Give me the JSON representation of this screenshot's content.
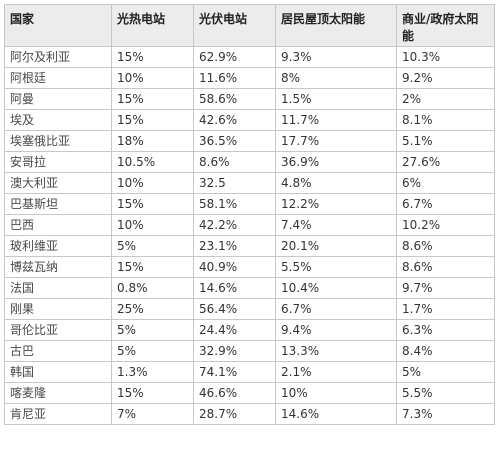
{
  "table": {
    "headers": [
      "国家",
      "光热电站",
      "光伏电站",
      "居民屋顶太阳能",
      "商业/政府太阳能"
    ],
    "rows": [
      [
        "阿尔及利亚",
        "15%",
        "62.9%",
        "9.3%",
        "10.3%"
      ],
      [
        "阿根廷",
        "10%",
        "11.6%",
        "8%",
        "9.2%"
      ],
      [
        "阿曼",
        "15%",
        "58.6%",
        "1.5%",
        "2%"
      ],
      [
        "埃及",
        "15%",
        "42.6%",
        "11.7%",
        "8.1%"
      ],
      [
        "埃塞俄比亚",
        "18%",
        "36.5%",
        "17.7%",
        "5.1%"
      ],
      [
        "安哥拉",
        "10.5%",
        "8.6%",
        "36.9%",
        "27.6%"
      ],
      [
        "澳大利亚",
        "10%",
        "32.5",
        "4.8%",
        "6%"
      ],
      [
        "巴基斯坦",
        "15%",
        "58.1%",
        "12.2%",
        "6.7%"
      ],
      [
        "巴西",
        "10%",
        "42.2%",
        "7.4%",
        "10.2%"
      ],
      [
        "玻利维亚",
        "5%",
        "23.1%",
        "20.1%",
        "8.6%"
      ],
      [
        "博兹瓦纳",
        "15%",
        "40.9%",
        "5.5%",
        "8.6%"
      ],
      [
        "法国",
        "0.8%",
        "14.6%",
        "10.4%",
        "9.7%"
      ],
      [
        "刚果",
        "25%",
        "56.4%",
        "6.7%",
        "1.7%"
      ],
      [
        "哥伦比亚",
        "5%",
        "24.4%",
        "9.4%",
        "6.3%"
      ],
      [
        "古巴",
        "5%",
        "32.9%",
        "13.3%",
        "8.4%"
      ],
      [
        "韩国",
        "1.3%",
        "74.1%",
        "2.1%",
        "5%"
      ],
      [
        "喀麦隆",
        "15%",
        "46.6%",
        "10%",
        "5.5%"
      ],
      [
        "肯尼亚",
        "7%",
        "28.7%",
        "14.6%",
        "7.3%"
      ]
    ]
  }
}
